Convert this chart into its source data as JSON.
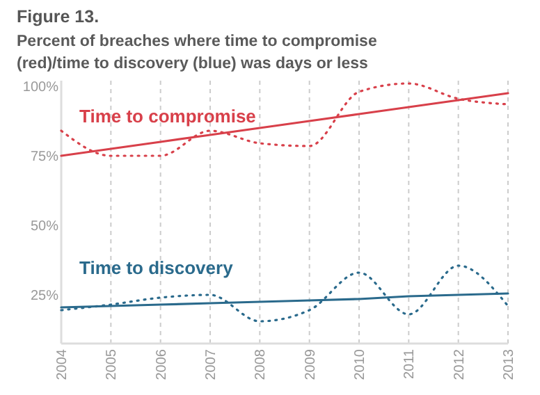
{
  "chart_data": {
    "type": "line",
    "title": "Figure 13.",
    "subtitle": "Percent of breaches where time to compromise (red)/time to discovery (blue) was days or less",
    "x": [
      2004,
      2005,
      2006,
      2007,
      2008,
      2009,
      2010,
      2011,
      2012,
      2013
    ],
    "series": [
      {
        "name": "Time to compromise",
        "color": "#d8404a",
        "values": [
          75,
          77.5,
          80,
          82.5,
          85,
          87.5,
          90,
          92.5,
          95,
          97.5
        ],
        "line_style": "solid"
      },
      {
        "color": "#d8404a",
        "values": [
          84,
          75,
          75,
          84,
          79.5,
          78.5,
          98,
          101,
          95.5,
          93.5
        ],
        "line_style": "dotted"
      },
      {
        "name": "Time to discovery",
        "color": "#2a6a8c",
        "values": [
          20.5,
          21,
          21.5,
          22,
          22.5,
          23,
          23.5,
          24.5,
          25,
          25.5
        ],
        "line_style": "solid"
      },
      {
        "color": "#2a6a8c",
        "values": [
          19.5,
          21.5,
          24,
          25,
          15.5,
          19.5,
          33,
          18,
          35.5,
          21
        ],
        "line_style": "dotted"
      }
    ],
    "xlim": [
      2004,
      2013
    ],
    "xticks": [
      2004,
      2005,
      2006,
      2007,
      2008,
      2009,
      2010,
      2011,
      2012,
      2013
    ],
    "ylim": [
      7.5,
      102
    ],
    "yticks": [
      {
        "value": 25,
        "label": "25%"
      },
      {
        "value": 50,
        "label": "50%"
      },
      {
        "value": 75,
        "label": "75%"
      },
      {
        "value": 100,
        "label": "100%"
      }
    ],
    "grid": "x",
    "marker": "none"
  }
}
